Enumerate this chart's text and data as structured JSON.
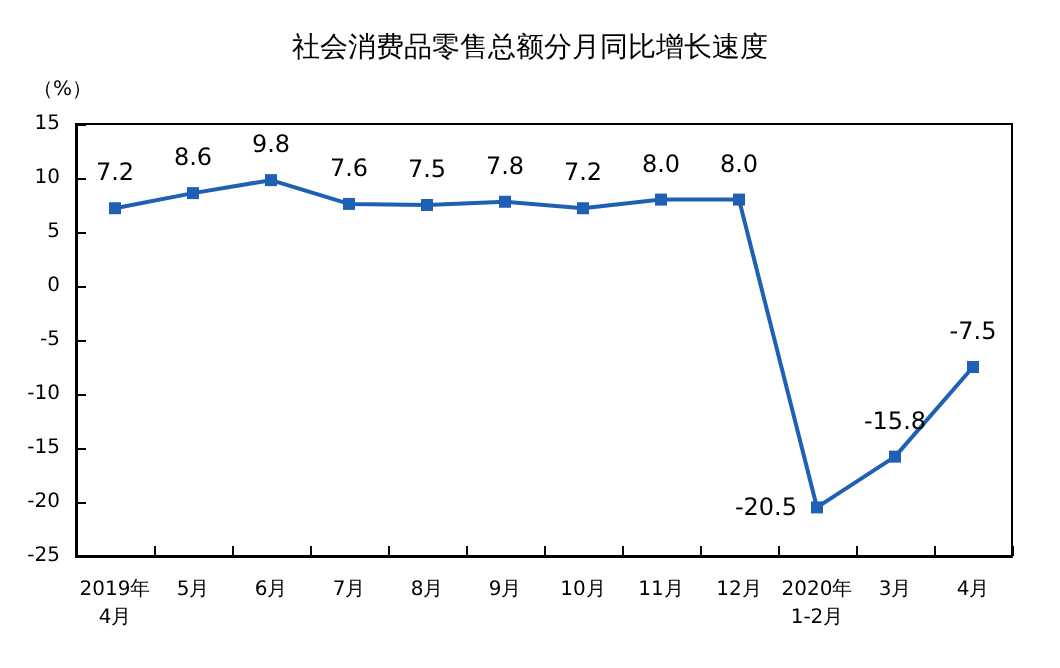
{
  "chart_data": {
    "type": "line",
    "title": "社会消费品零售总额分月同比增长速度",
    "ylabel": "（%）",
    "categories": [
      "2019年\n4月",
      "5月",
      "6月",
      "7月",
      "8月",
      "9月",
      "10月",
      "11月",
      "12月",
      "2020年\n1-2月",
      "3月",
      "4月"
    ],
    "series": [
      {
        "color": "#1f5fb4",
        "values": [
          7.2,
          8.6,
          9.8,
          7.6,
          7.5,
          7.8,
          7.2,
          8.0,
          8.0,
          -20.5,
          -15.8,
          -7.5
        ],
        "value_labels": [
          "7.2",
          "8.6",
          "9.8",
          "7.6",
          "7.5",
          "7.8",
          "7.2",
          "8.0",
          "8.0",
          "-20.5",
          "-15.8",
          "-7.5"
        ]
      }
    ],
    "ylim": [
      -25,
      15
    ],
    "yticks": [
      -25,
      -20,
      -15,
      -10,
      -5,
      0,
      5,
      10,
      15
    ],
    "grid": false,
    "marker": "square",
    "line_style": "solid"
  }
}
